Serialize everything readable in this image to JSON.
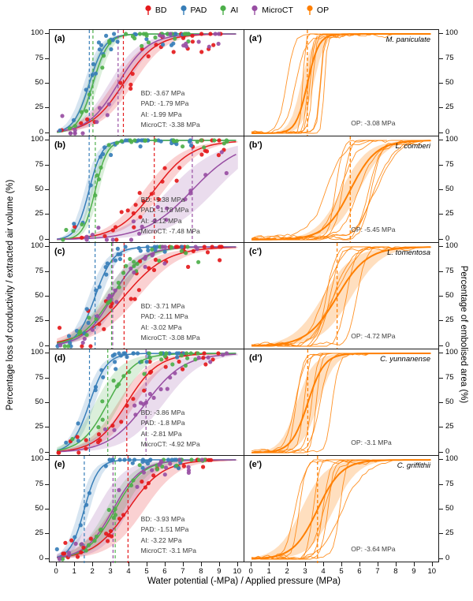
{
  "chart_data": {
    "type": "line",
    "title": "",
    "xlabel": "Water potential (-MPa) / Applied pressure (MPa)",
    "ylabel_left": "Percentage loss of conductivity / extracted air volume (%)",
    "ylabel_right": "Percentage of embolised area  (%)",
    "xlim": [
      0,
      10
    ],
    "ylim": [
      0,
      100
    ],
    "x_ticks": [
      0,
      1,
      2,
      3,
      4,
      5,
      6,
      7,
      8,
      9,
      10
    ],
    "y_ticks": [
      0,
      25,
      50,
      75,
      100
    ],
    "grid": false,
    "legend_position": "top",
    "legend": [
      {
        "label": "BD",
        "color": "#e41a1c"
      },
      {
        "label": "PAD",
        "color": "#377eb8"
      },
      {
        "label": "AI",
        "color": "#4daf4a"
      },
      {
        "label": "MicroCT",
        "color": "#984ea3"
      },
      {
        "label": "OP",
        "color": "#ff7f00"
      }
    ],
    "rows": [
      {
        "left": {
          "panel_label": "(a)",
          "annotations": [
            "BD: -3.67 MPa",
            "PAD: -1.79 MPa",
            "AI: -1.99 MPa",
            "MicroCT: -3.38 MPa"
          ],
          "series": [
            {
              "name": "BD",
              "color": "#e41a1c",
              "x50_mpa": -3.67,
              "p50": 3.67,
              "k": 1.1,
              "band": 0.55,
              "points": 30,
              "xmax": 9.3,
              "noise": 22
            },
            {
              "name": "PAD",
              "color": "#377eb8",
              "x50_mpa": -1.79,
              "p50": 1.79,
              "k": 2.3,
              "band": 0.3,
              "points": 30,
              "xmax": 7.3,
              "noise": 15
            },
            {
              "name": "AI",
              "color": "#4daf4a",
              "x50_mpa": -1.99,
              "p50": 1.99,
              "k": 2.4,
              "band": 0.3,
              "points": 28,
              "xmax": 7.5,
              "noise": 15
            },
            {
              "name": "MicroCT",
              "color": "#984ea3",
              "x50_mpa": -3.38,
              "p50": 3.38,
              "k": 1.2,
              "band": 0.5,
              "points": 22,
              "xmax": 9.3,
              "noise": 18
            }
          ]
        },
        "right": {
          "panel_label": "(a')",
          "species": "M. paniculate",
          "annotation": "OP: -3.08 MPa",
          "series": {
            "name": "OP",
            "color": "#ff7f00",
            "x50_mpa": -3.08,
            "p50": 3.08,
            "k": 3.2,
            "band": 0.35,
            "replicates": 9
          }
        }
      },
      {
        "left": {
          "panel_label": "(b)",
          "annotations": [
            "BD: -5.38 MPa",
            "PAD: -1.78 MPa",
            "AI: -2.12 MPa",
            "MicroCT: -7.48 MPa"
          ],
          "series": [
            {
              "name": "BD",
              "color": "#e41a1c",
              "x50_mpa": -5.38,
              "p50": 5.38,
              "k": 0.95,
              "band": 0.55,
              "points": 30,
              "xmax": 9.5,
              "noise": 20
            },
            {
              "name": "PAD",
              "color": "#377eb8",
              "x50_mpa": -1.78,
              "p50": 1.78,
              "k": 2.8,
              "band": 0.25,
              "points": 30,
              "xmax": 7.5,
              "noise": 12
            },
            {
              "name": "AI",
              "color": "#4daf4a",
              "x50_mpa": -2.12,
              "p50": 2.12,
              "k": 3.0,
              "band": 0.22,
              "points": 28,
              "xmax": 9.5,
              "noise": 10
            },
            {
              "name": "MicroCT",
              "color": "#984ea3",
              "x50_mpa": -7.48,
              "p50": 7.48,
              "k": 0.75,
              "band": 1.3,
              "points": 20,
              "xmax": 9.6,
              "noise": 18
            }
          ]
        },
        "right": {
          "panel_label": "(b')",
          "species": "L. comberi",
          "annotation": "OP: -5.45 MPa",
          "series": {
            "name": "OP",
            "color": "#ff7f00",
            "x50_mpa": -5.45,
            "p50": 5.45,
            "k": 1.4,
            "band": 0.5,
            "replicates": 9
          }
        }
      },
      {
        "left": {
          "panel_label": "(c)",
          "annotations": [
            "BD: -3.71 MPa",
            "PAD: -2.11 MPa",
            "AI: -3.02 MPa",
            "MicroCT: -3.08 MPa"
          ],
          "series": [
            {
              "name": "BD",
              "color": "#e41a1c",
              "x50_mpa": -3.71,
              "p50": 3.71,
              "k": 0.85,
              "band": 0.8,
              "points": 34,
              "xmax": 9.4,
              "noise": 24
            },
            {
              "name": "PAD",
              "color": "#377eb8",
              "x50_mpa": -2.11,
              "p50": 2.11,
              "k": 2.0,
              "band": 0.35,
              "points": 28,
              "xmax": 7.0,
              "noise": 14
            },
            {
              "name": "AI",
              "color": "#4daf4a",
              "x50_mpa": -3.02,
              "p50": 3.02,
              "k": 1.15,
              "band": 0.45,
              "points": 28,
              "xmax": 8.0,
              "noise": 16
            },
            {
              "name": "MicroCT",
              "color": "#984ea3",
              "x50_mpa": -3.08,
              "p50": 3.08,
              "k": 1.25,
              "band": 0.45,
              "points": 22,
              "xmax": 8.0,
              "noise": 16
            }
          ]
        },
        "right": {
          "panel_label": "(c')",
          "species": "L. tomentosa",
          "annotation": "OP: -4.72 MPa",
          "series": {
            "name": "OP",
            "color": "#ff7f00",
            "x50_mpa": -4.72,
            "p50": 4.72,
            "k": 1.2,
            "band": 0.8,
            "replicates": 7
          }
        }
      },
      {
        "left": {
          "panel_label": "(d)",
          "annotations": [
            "BD: -3.86 MPa",
            "PAD: -1.8 MPa",
            "AI: -2.81 MPa",
            "MicroCT: -4.92 MPa"
          ],
          "series": [
            {
              "name": "BD",
              "color": "#e41a1c",
              "x50_mpa": -3.86,
              "p50": 3.86,
              "k": 1.15,
              "band": 0.5,
              "points": 30,
              "xmax": 9.4,
              "noise": 18
            },
            {
              "name": "PAD",
              "color": "#377eb8",
              "x50_mpa": -1.8,
              "p50": 1.8,
              "k": 2.1,
              "band": 0.3,
              "points": 30,
              "xmax": 7.2,
              "noise": 13
            },
            {
              "name": "AI",
              "color": "#4daf4a",
              "x50_mpa": -2.81,
              "p50": 2.81,
              "k": 1.35,
              "band": 0.7,
              "points": 26,
              "xmax": 8.2,
              "noise": 15
            },
            {
              "name": "MicroCT",
              "color": "#984ea3",
              "x50_mpa": -4.92,
              "p50": 4.92,
              "k": 0.95,
              "band": 1.0,
              "points": 18,
              "xmax": 9.5,
              "noise": 16
            }
          ]
        },
        "right": {
          "panel_label": "(d')",
          "species": "C. yunnanense",
          "annotation": "OP: -3.1 MPa",
          "series": {
            "name": "OP",
            "color": "#ff7f00",
            "x50_mpa": -3.1,
            "p50": 3.1,
            "k": 2.2,
            "band": 0.6,
            "replicates": 7
          }
        }
      },
      {
        "left": {
          "panel_label": "(e)",
          "annotations": [
            "BD: -3.93 MPa",
            "PAD: -1.51 MPa",
            "AI: -3.22 MPa",
            "MicroCT: -3.1 MPa"
          ],
          "series": [
            {
              "name": "BD",
              "color": "#e41a1c",
              "x50_mpa": -3.93,
              "p50": 3.93,
              "k": 1.05,
              "band": 0.9,
              "points": 30,
              "xmax": 9.3,
              "noise": 18
            },
            {
              "name": "PAD",
              "color": "#377eb8",
              "x50_mpa": -1.51,
              "p50": 1.51,
              "k": 2.6,
              "band": 0.3,
              "points": 30,
              "xmax": 7.0,
              "noise": 12
            },
            {
              "name": "AI",
              "color": "#4daf4a",
              "x50_mpa": -3.22,
              "p50": 3.22,
              "k": 1.3,
              "band": 0.5,
              "points": 26,
              "xmax": 8.2,
              "noise": 15
            },
            {
              "name": "MicroCT",
              "color": "#984ea3",
              "x50_mpa": -3.1,
              "p50": 3.1,
              "k": 1.3,
              "band": 0.9,
              "points": 20,
              "xmax": 8.3,
              "noise": 16
            }
          ]
        },
        "right": {
          "panel_label": "(e')",
          "species": "C. griffithii",
          "annotation": "OP: -3.64 MPa",
          "series": {
            "name": "OP",
            "color": "#ff7f00",
            "x50_mpa": -3.64,
            "p50": 3.64,
            "k": 1.5,
            "band": 0.9,
            "replicates": 8
          }
        }
      }
    ]
  }
}
